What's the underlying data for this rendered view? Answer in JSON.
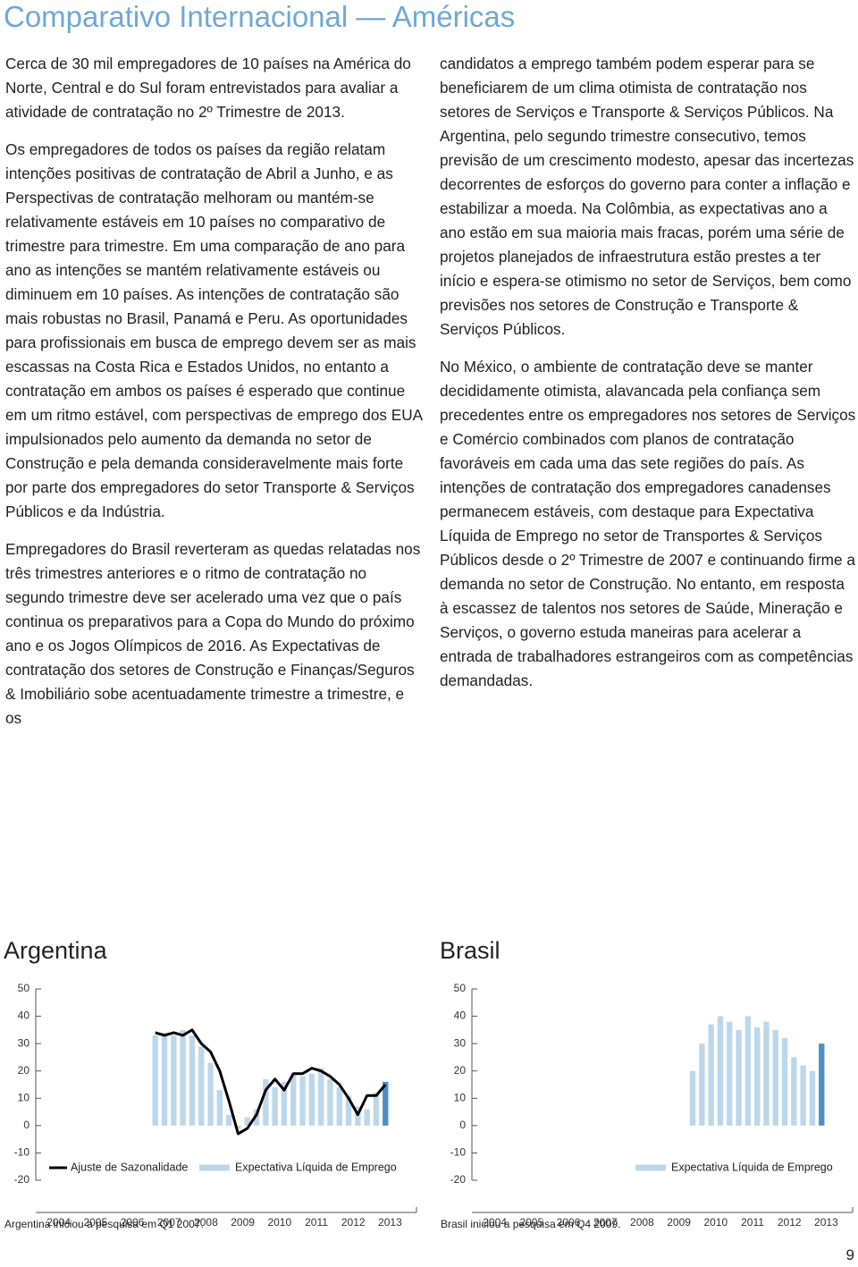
{
  "title": "Comparativo Internacional — Américas",
  "left_column": [
    "Cerca de 30 mil empregadores de 10 países na América do Norte, Central e do Sul foram entrevistados para avaliar a atividade de contratação no 2º Trimestre de 2013.",
    "Os empregadores de todos os países da região relatam intenções positivas de contratação de Abril a Junho, e as Perspectivas de contratação melhoram ou mantém-se relativamente estáveis em 10 países no comparativo de trimestre para trimestre. Em uma comparação de ano para ano as intenções se mantém relativamente estáveis ou diminuem em 10 países. As intenções de contratação são mais robustas no Brasil, Panamá e Peru. As oportunidades para profissionais em busca de emprego devem ser as mais escassas na Costa Rica e Estados Unidos, no entanto a contratação em ambos os países é esperado que continue em um ritmo estável, com perspectivas de emprego dos EUA impulsionados pelo aumento da demanda no setor de Construção e pela demanda consideravelmente mais forte por parte dos empregadores do setor Transporte & Serviços Públicos e da Indústria.",
    "Empregadores do Brasil reverteram as quedas relatadas nos três trimestres anteriores e o ritmo de contratação no segundo trimestre deve ser acelerado uma vez que o país continua os preparativos para a Copa do Mundo do próximo ano e os Jogos Olímpicos de 2016. As Expectativas de contratação dos setores de Construção e Finanças/Seguros & Imobiliário sobe acentuadamente trimestre a trimestre, e os"
  ],
  "right_column": [
    "candidatos a emprego também podem esperar para se beneficiarem de um clima otimista de contratação nos setores de Serviços e Transporte & Serviços Públicos. Na Argentina, pelo segundo trimestre consecutivo, temos previsão de um crescimento modesto, apesar das incertezas decorrentes de esforços do governo para conter a inflação e estabilizar a moeda. Na Colômbia, as expectativas ano a ano estão em sua maioria mais fracas, porém uma série de projetos planejados de infraestrutura estão prestes a ter início e espera-se otimismo no setor de Serviços, bem como previsões nos setores de Construção e Transporte & Serviços Públicos.",
    "No México, o ambiente de contratação deve se manter decididamente otimista, alavancada pela confiança sem precedentes entre os empregadores nos setores de Serviços e Comércio combinados com planos de contratação favoráveis em cada uma das sete regiões do país. As intenções de contratação dos empregadores canadenses permanecem estáveis, com destaque para Expectativa Líquida de Emprego no setor de Transportes & Serviços Públicos desde o 2º Trimestre de 2007 e continuando firme a demanda no setor de Construção. No entanto, em resposta à escassez de talentos nos setores de Saúde, Mineração e Serviços, o governo estuda maneiras para acelerar a entrada de trabalhadores estrangeiros com as competências demandadas."
  ],
  "chart_data": [
    {
      "type": "bar",
      "title": "Argentina",
      "note": "Argentina iniciou a pesquisa em Q1 2007.",
      "categories": [
        "2004",
        null,
        null,
        null,
        "2005",
        null,
        null,
        null,
        "2006",
        null,
        null,
        null,
        "2007",
        null,
        null,
        null,
        "2008",
        null,
        null,
        null,
        "2009",
        null,
        null,
        null,
        "2010",
        null,
        null,
        null,
        "2011",
        null,
        null,
        null,
        "2012",
        null,
        null,
        null,
        "2013",
        null
      ],
      "ylim": [
        -20,
        50
      ],
      "yticks": [
        -20,
        -10,
        0,
        10,
        20,
        30,
        40,
        50
      ],
      "series": [
        {
          "name": "Ajuste de Sazonalidade",
          "type": "line",
          "color": "#000000",
          "values": [
            null,
            null,
            null,
            null,
            null,
            null,
            null,
            null,
            null,
            null,
            null,
            null,
            34,
            33,
            34,
            33,
            35,
            30,
            27,
            20,
            9,
            -3,
            -1,
            4,
            13,
            17,
            13,
            19,
            19,
            21,
            20,
            18,
            15,
            10,
            4,
            11,
            11,
            15
          ]
        },
        {
          "name": "Expectativa Líquida de Emprego",
          "type": "bar",
          "color": "#bcd7ec",
          "last_color": "#4f8fc6",
          "values": [
            null,
            null,
            null,
            null,
            null,
            null,
            null,
            null,
            null,
            null,
            null,
            null,
            33,
            34,
            33,
            35,
            33,
            29,
            23,
            13,
            4,
            -1,
            3,
            6,
            17,
            14,
            16,
            19,
            18,
            19,
            21,
            17,
            14,
            11,
            7,
            6,
            12,
            16
          ]
        }
      ]
    },
    {
      "type": "bar",
      "title": "Brasil",
      "note": "Brasil iniciou a pesquisa em Q4 2009.",
      "categories": [
        "2004",
        null,
        null,
        null,
        "2005",
        null,
        null,
        null,
        "2006",
        null,
        null,
        null,
        "2007",
        null,
        null,
        null,
        "2008",
        null,
        null,
        null,
        "2009",
        null,
        null,
        null,
        "2010",
        null,
        null,
        null,
        "2011",
        null,
        null,
        null,
        "2012",
        null,
        null,
        null,
        "2013",
        null
      ],
      "ylim": [
        -20,
        50
      ],
      "yticks": [
        -20,
        -10,
        0,
        10,
        20,
        30,
        40,
        50
      ],
      "series": [
        {
          "name": "Expectativa Líquida de Emprego",
          "type": "bar",
          "color": "#bcd7ec",
          "last_color": "#4f8fc6",
          "values": [
            null,
            null,
            null,
            null,
            null,
            null,
            null,
            null,
            null,
            null,
            null,
            null,
            null,
            null,
            null,
            null,
            null,
            null,
            null,
            null,
            null,
            null,
            null,
            20,
            30,
            37,
            40,
            38,
            35,
            40,
            36,
            38,
            35,
            32,
            25,
            22,
            20,
            30
          ]
        }
      ]
    }
  ],
  "page_number": "9"
}
